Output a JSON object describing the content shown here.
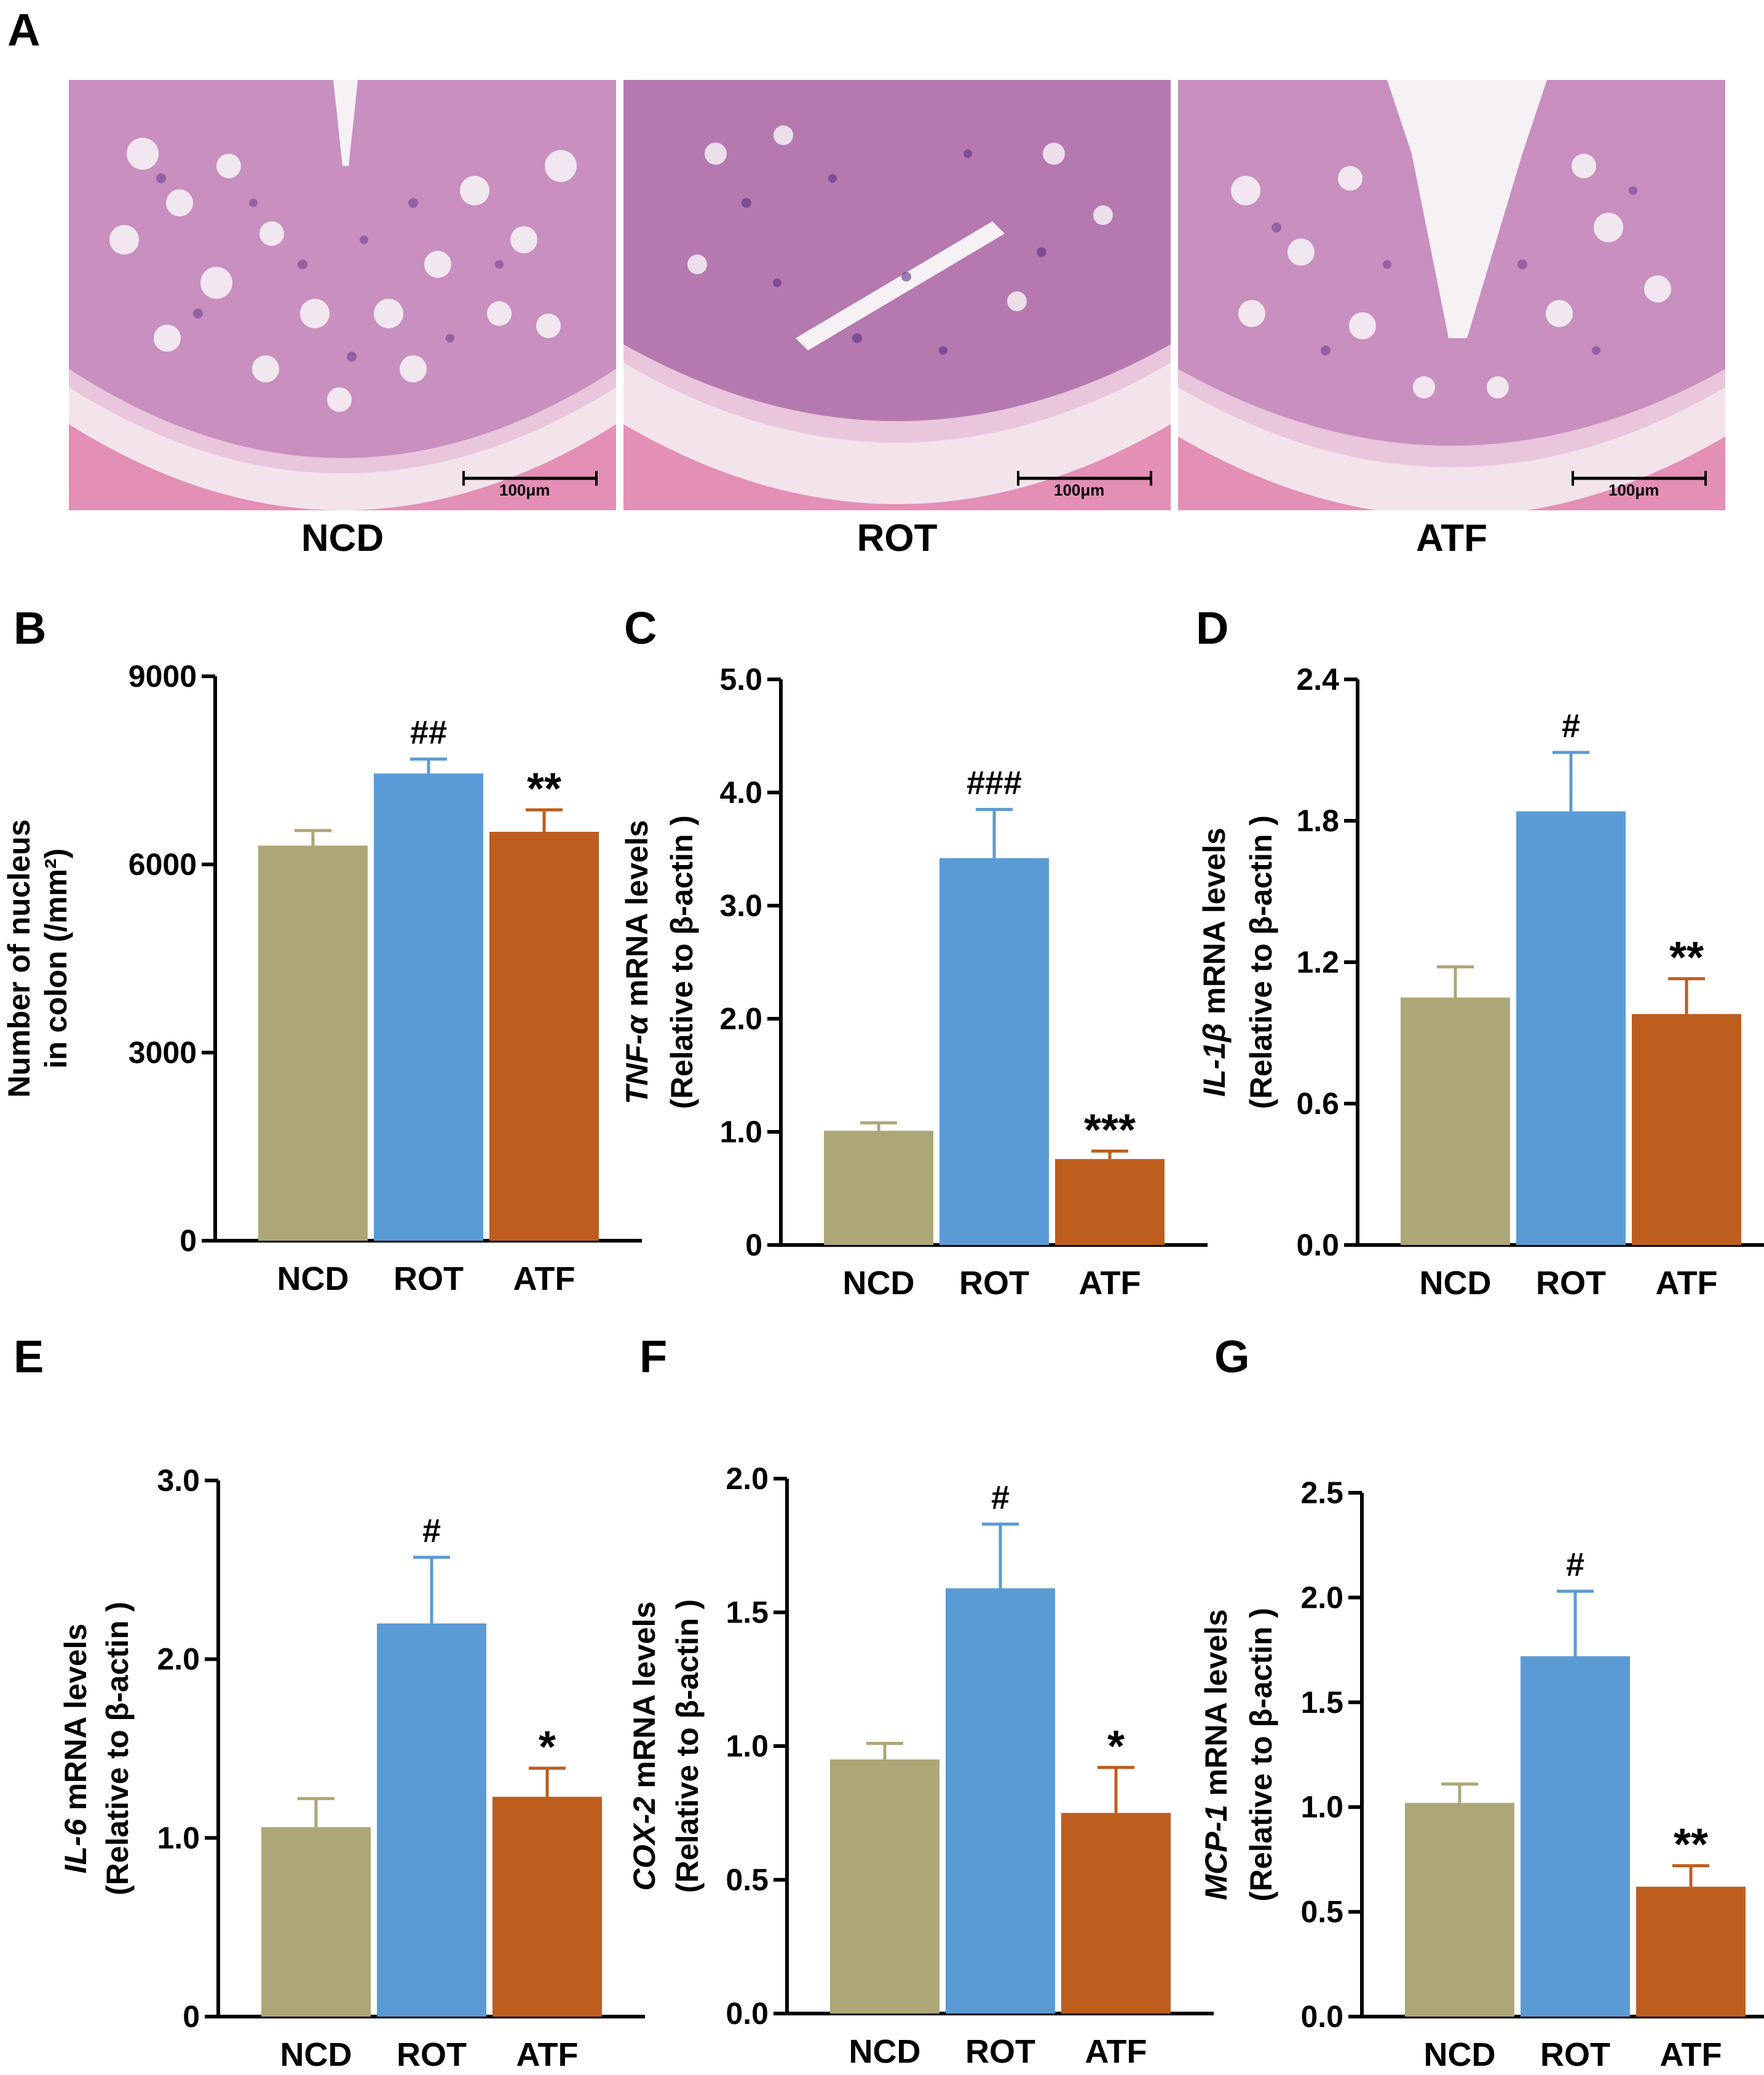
{
  "panels": {
    "A": "A",
    "B": "B",
    "C": "C",
    "D": "D",
    "E": "E",
    "F": "F",
    "G": "G"
  },
  "histology": [
    {
      "label": "NCD",
      "scale": "100μm"
    },
    {
      "label": "ROT",
      "scale": "100μm"
    },
    {
      "label": "ATF",
      "scale": "100μm"
    }
  ],
  "colors": {
    "NCD": "#ada677",
    "ROT": "#5b9bd5",
    "ATF": "#bd5e1f"
  },
  "chart_data": [
    {
      "id": "B",
      "type": "bar",
      "categories": [
        "NCD",
        "ROT",
        "ATF"
      ],
      "values": [
        6300,
        7450,
        6520
      ],
      "errors": [
        240,
        230,
        350
      ],
      "annotations": [
        "",
        "##",
        "**"
      ],
      "ylabel": "Number of nucleus|in colon (/mm²)",
      "ylabel_lines": [
        "Number of nucleus",
        "in colon (/mm²)"
      ],
      "ylabel_italic": "",
      "ylim": [
        0,
        9000
      ],
      "yticks": [
        "0",
        "3000",
        "6000",
        "9000"
      ]
    },
    {
      "id": "C",
      "type": "bar",
      "categories": [
        "NCD",
        "ROT",
        "ATF"
      ],
      "values": [
        1.01,
        3.42,
        0.76
      ],
      "errors": [
        0.07,
        0.43,
        0.07
      ],
      "annotations": [
        "",
        "###",
        "***"
      ],
      "ylabel_lines": [
        "TNF-α mRNA levels",
        "(Relative to β-actin )"
      ],
      "ylabel_italic": "TNF-α",
      "ylim": [
        0,
        5.0
      ],
      "yticks": [
        "0",
        "1.0",
        "2.0",
        "3.0",
        "4.0",
        "5.0"
      ]
    },
    {
      "id": "D",
      "type": "bar",
      "categories": [
        "NCD",
        "ROT",
        "ATF"
      ],
      "values": [
        1.05,
        1.84,
        0.98
      ],
      "errors": [
        0.13,
        0.25,
        0.15
      ],
      "annotations": [
        "",
        "#",
        "**"
      ],
      "ylabel_lines": [
        "IL-1β mRNA levels",
        "(Relative to β-actin )"
      ],
      "ylabel_italic": "IL-1β",
      "ylim": [
        0,
        2.4
      ],
      "yticks": [
        "0.0",
        "0.6",
        "1.2",
        "1.8",
        "2.4"
      ]
    },
    {
      "id": "E",
      "type": "bar",
      "categories": [
        "NCD",
        "ROT",
        "ATF"
      ],
      "values": [
        1.06,
        2.2,
        1.23
      ],
      "errors": [
        0.16,
        0.37,
        0.16
      ],
      "annotations": [
        "",
        "#",
        "*"
      ],
      "ylabel_lines": [
        "IL-6 mRNA levels",
        "(Relative to β-actin )"
      ],
      "ylabel_italic": "IL-6",
      "ylim": [
        0,
        3.0
      ],
      "yticks": [
        "0",
        "1.0",
        "2.0",
        "3.0"
      ]
    },
    {
      "id": "F",
      "type": "bar",
      "categories": [
        "NCD",
        "ROT",
        "ATF"
      ],
      "values": [
        0.95,
        1.59,
        0.75
      ],
      "errors": [
        0.06,
        0.24,
        0.17
      ],
      "annotations": [
        "",
        "#",
        "*"
      ],
      "ylabel_lines": [
        "COX-2 mRNA levels",
        "(Relative to β-actin )"
      ],
      "ylabel_italic": "COX-2",
      "ylim": [
        0,
        2.0
      ],
      "yticks": [
        "0.0",
        "0.5",
        "1.0",
        "1.5",
        "2.0"
      ]
    },
    {
      "id": "G",
      "type": "bar",
      "categories": [
        "NCD",
        "ROT",
        "ATF"
      ],
      "values": [
        1.02,
        1.72,
        0.62
      ],
      "errors": [
        0.09,
        0.31,
        0.1
      ],
      "annotations": [
        "",
        "#",
        "**"
      ],
      "ylabel_lines": [
        "MCP-1 mRNA levels",
        "(Relative to β-actin )"
      ],
      "ylabel_italic": "MCP-1",
      "ylim": [
        0,
        2.5
      ],
      "yticks": [
        "0.0",
        "0.5",
        "1.0",
        "1.5",
        "2.0",
        "2.5"
      ]
    }
  ]
}
